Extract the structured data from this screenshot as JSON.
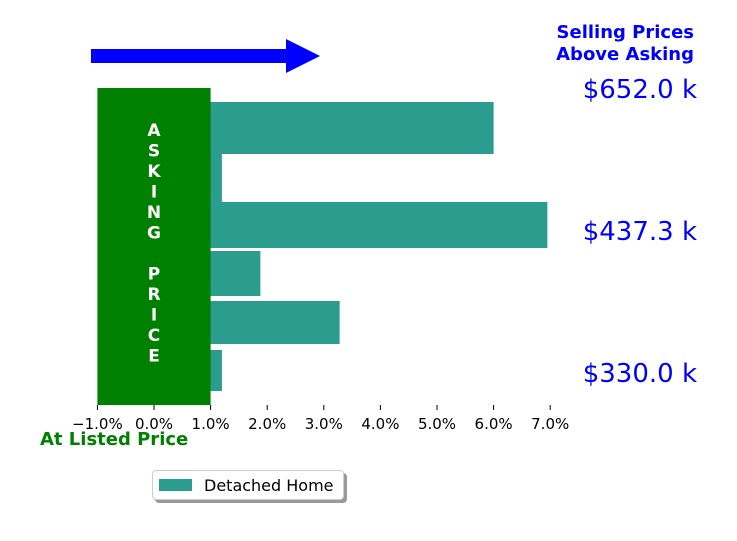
{
  "chart_data": {
    "type": "bar",
    "orientation": "horizontal",
    "title": "Selling Prices\nAbove Asking",
    "xlabel": "At Listed Price",
    "ylabel": "",
    "xlim": [
      -1.0,
      7.5
    ],
    "xticks": [
      "−1.0%",
      "0.0%",
      "1.0%",
      "2.0%",
      "3.0%",
      "4.0%",
      "5.0%",
      "6.0%",
      "7.0%"
    ],
    "xtick_values": [
      -1,
      0,
      1,
      2,
      3,
      4,
      5,
      6,
      7
    ],
    "grid": false,
    "legend_position": "bottom-left",
    "series": [
      {
        "name": "Detached Home",
        "color": "#2a9d8f",
        "values": [
          6.0,
          1.2,
          6.95,
          1.88,
          3.28,
          1.2
        ]
      }
    ],
    "asking_price_box": {
      "label": "ASKING PRICE",
      "range": [
        -1.0,
        1.0
      ],
      "color": "#008000"
    },
    "price_labels": [
      "$652.0 k",
      "$437.3 k",
      "$330.0 k"
    ],
    "arrow_color": "#0000ff",
    "text_color_title": "#0000ff",
    "text_color_xlabel": "#008000"
  }
}
